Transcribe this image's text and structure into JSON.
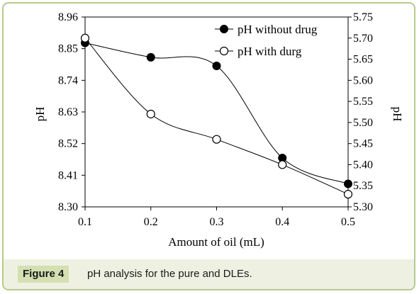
{
  "chart_data": {
    "type": "line",
    "x": [
      0.1,
      0.2,
      0.3,
      0.4,
      0.5
    ],
    "x_tick_labels": [
      "0.1",
      "0.2",
      "0.3",
      "0.4",
      "0.5"
    ],
    "xlabel": "Amount of oil (mL)",
    "ylabel_left": "pH",
    "ylabel_right": "pH",
    "y_left_range": [
      8.3,
      8.96
    ],
    "y_left_ticks": [
      "8.30",
      "8.41",
      "8.52",
      "8.63",
      "8.74",
      "8.85",
      "8.96"
    ],
    "y_right_range": [
      5.3,
      5.75
    ],
    "y_right_ticks": [
      "5.30",
      "5.35",
      "5.40",
      "5.45",
      "5.50",
      "5.55",
      "5.60",
      "5.65",
      "5.70",
      "5.75"
    ],
    "grid": false,
    "legend_position": "top-right",
    "series": [
      {
        "name": "pH without drug",
        "axis": "left",
        "marker": "filled-circle",
        "color": "#000000",
        "values": [
          8.87,
          8.82,
          8.79,
          8.47,
          8.38
        ]
      },
      {
        "name": "pH with durg",
        "axis": "right",
        "marker": "open-circle",
        "color": "#000000",
        "values": [
          5.7,
          5.52,
          5.46,
          5.4,
          5.33
        ]
      }
    ]
  },
  "caption": {
    "label": "Figure 4",
    "text": "pH analysis for the pure and DLEs."
  }
}
